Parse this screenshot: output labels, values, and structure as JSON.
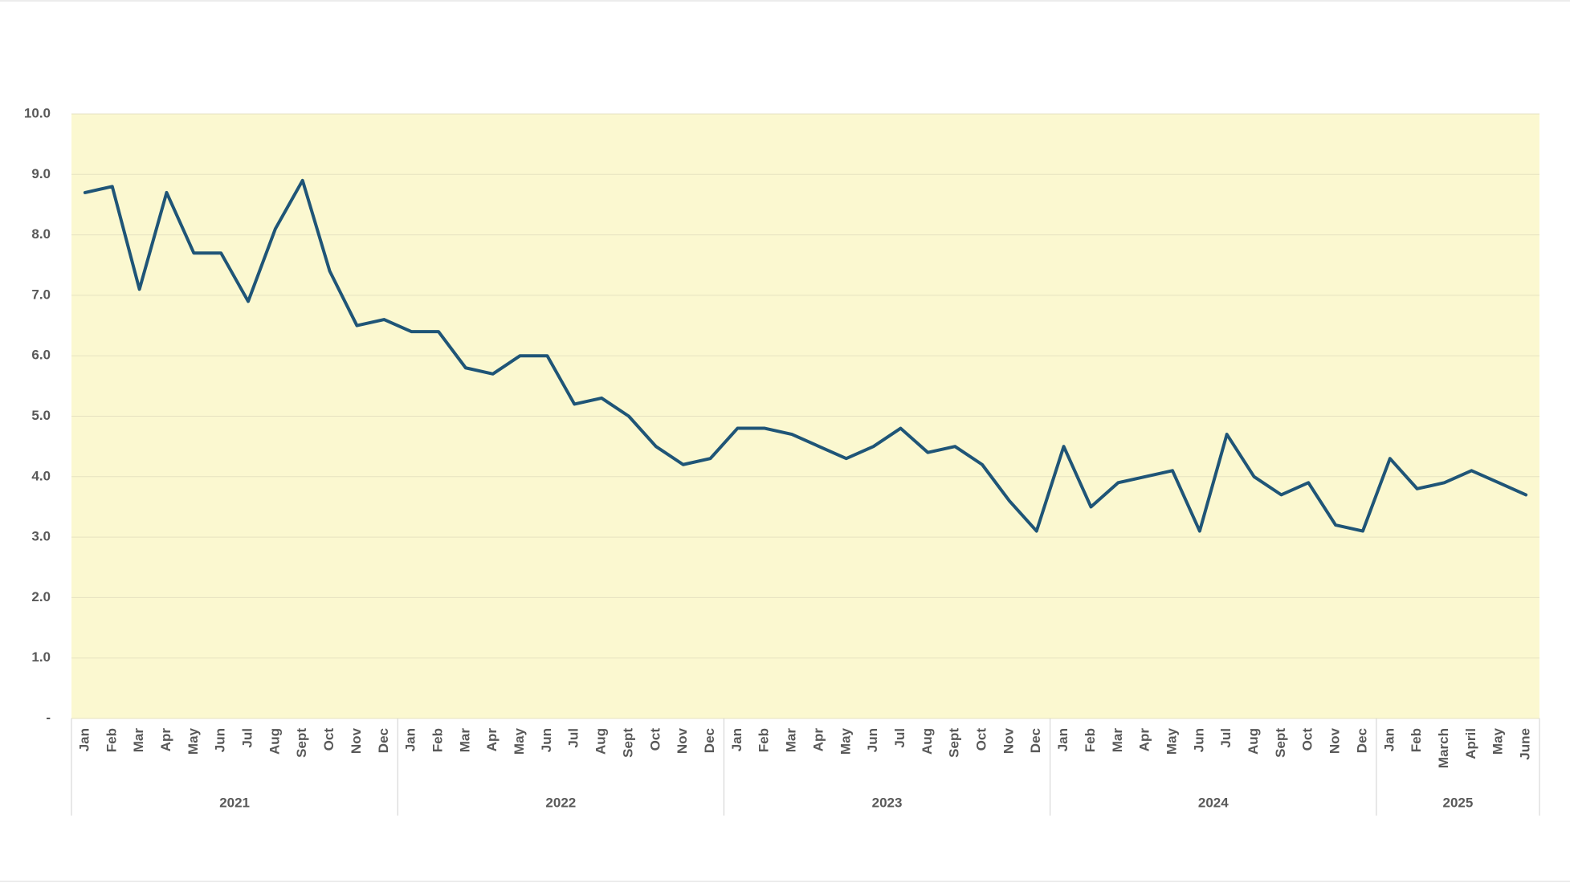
{
  "chart_data": {
    "type": "line",
    "color": "#1f5577",
    "background": "#fbf8d0",
    "grid": true,
    "ylim": [
      0,
      10
    ],
    "yticks": [
      {
        "value": 0,
        "label": "-"
      },
      {
        "value": 1,
        "label": "1.0"
      },
      {
        "value": 2,
        "label": "2.0"
      },
      {
        "value": 3,
        "label": "3.0"
      },
      {
        "value": 4,
        "label": "4.0"
      },
      {
        "value": 5,
        "label": "5.0"
      },
      {
        "value": 6,
        "label": "6.0"
      },
      {
        "value": 7,
        "label": "7.0"
      },
      {
        "value": 8,
        "label": "8.0"
      },
      {
        "value": 9,
        "label": "9.0"
      },
      {
        "value": 10,
        "label": "10.0"
      }
    ],
    "groups": [
      {
        "label": "2021",
        "categories": [
          "Jan",
          "Feb",
          "Mar",
          "Apr",
          "May",
          "Jun",
          "Jul",
          "Aug",
          "Sept",
          "Oct",
          "Nov",
          "Dec"
        ],
        "values": [
          8.7,
          8.8,
          7.1,
          8.7,
          7.7,
          7.7,
          6.9,
          8.1,
          8.9,
          7.4,
          6.5,
          6.6
        ]
      },
      {
        "label": "2022",
        "categories": [
          "Jan",
          "Feb",
          "Mar",
          "Apr",
          "May",
          "Jun",
          "Jul",
          "Aug",
          "Sept",
          "Oct",
          "Nov",
          "Dec"
        ],
        "values": [
          6.4,
          6.4,
          5.8,
          5.7,
          6.0,
          6.0,
          5.2,
          5.3,
          5.0,
          4.5,
          4.2,
          4.3
        ]
      },
      {
        "label": "2023",
        "categories": [
          "Jan",
          "Feb",
          "Mar",
          "Apr",
          "May",
          "Jun",
          "Jul",
          "Aug",
          "Sept",
          "Oct",
          "Nov",
          "Dec"
        ],
        "values": [
          4.8,
          4.8,
          4.7,
          4.5,
          4.3,
          4.5,
          4.8,
          4.4,
          4.5,
          4.2,
          3.6,
          3.1
        ]
      },
      {
        "label": "2024",
        "categories": [
          "Jan",
          "Feb",
          "Mar",
          "Apr",
          "May",
          "Jun",
          "Jul",
          "Aug",
          "Sept",
          "Oct",
          "Nov",
          "Dec"
        ],
        "values": [
          4.5,
          3.5,
          3.9,
          4.0,
          4.1,
          3.1,
          4.7,
          4.0,
          3.7,
          3.9,
          3.2,
          3.1
        ]
      },
      {
        "label": "2025",
        "categories": [
          "Jan",
          "Feb",
          "March",
          "April",
          "May",
          "June"
        ],
        "values": [
          4.3,
          3.8,
          3.9,
          4.1,
          3.9,
          3.7
        ]
      }
    ]
  }
}
